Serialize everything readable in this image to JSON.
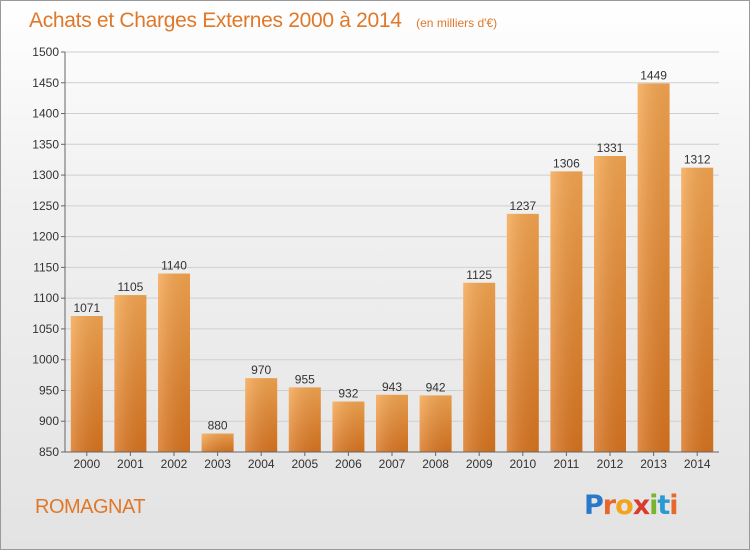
{
  "header": {
    "title": "Achats et Charges Externes 2000 à 2014",
    "subtitle": "(en milliers d'€)"
  },
  "footer": {
    "location": "ROMAGNAT",
    "logo_letters": [
      {
        "char": "P",
        "color": "#2b78c8"
      },
      {
        "char": "r",
        "color": "#e8672a"
      },
      {
        "char": "o",
        "color": "#f2a51c"
      },
      {
        "char": "x",
        "color": "#d93c2f"
      },
      {
        "char": "i",
        "color": "#7ab32e"
      },
      {
        "char": "t",
        "color": "#2b9ad2"
      },
      {
        "char": "i",
        "color": "#e8672a"
      }
    ]
  },
  "chart_data": {
    "type": "bar",
    "categories": [
      "2000",
      "2001",
      "2002",
      "2003",
      "2004",
      "2005",
      "2006",
      "2007",
      "2008",
      "2009",
      "2010",
      "2011",
      "2012",
      "2013",
      "2014"
    ],
    "values": [
      1071,
      1105,
      1140,
      880,
      970,
      955,
      932,
      943,
      942,
      1125,
      1237,
      1306,
      1331,
      1449,
      1312
    ],
    "ylim": [
      850,
      1500
    ],
    "yticks": [
      850,
      900,
      950,
      1000,
      1050,
      1100,
      1150,
      1200,
      1250,
      1300,
      1350,
      1400,
      1450,
      1500
    ],
    "grid": true,
    "bar_color": "#f0913a"
  }
}
